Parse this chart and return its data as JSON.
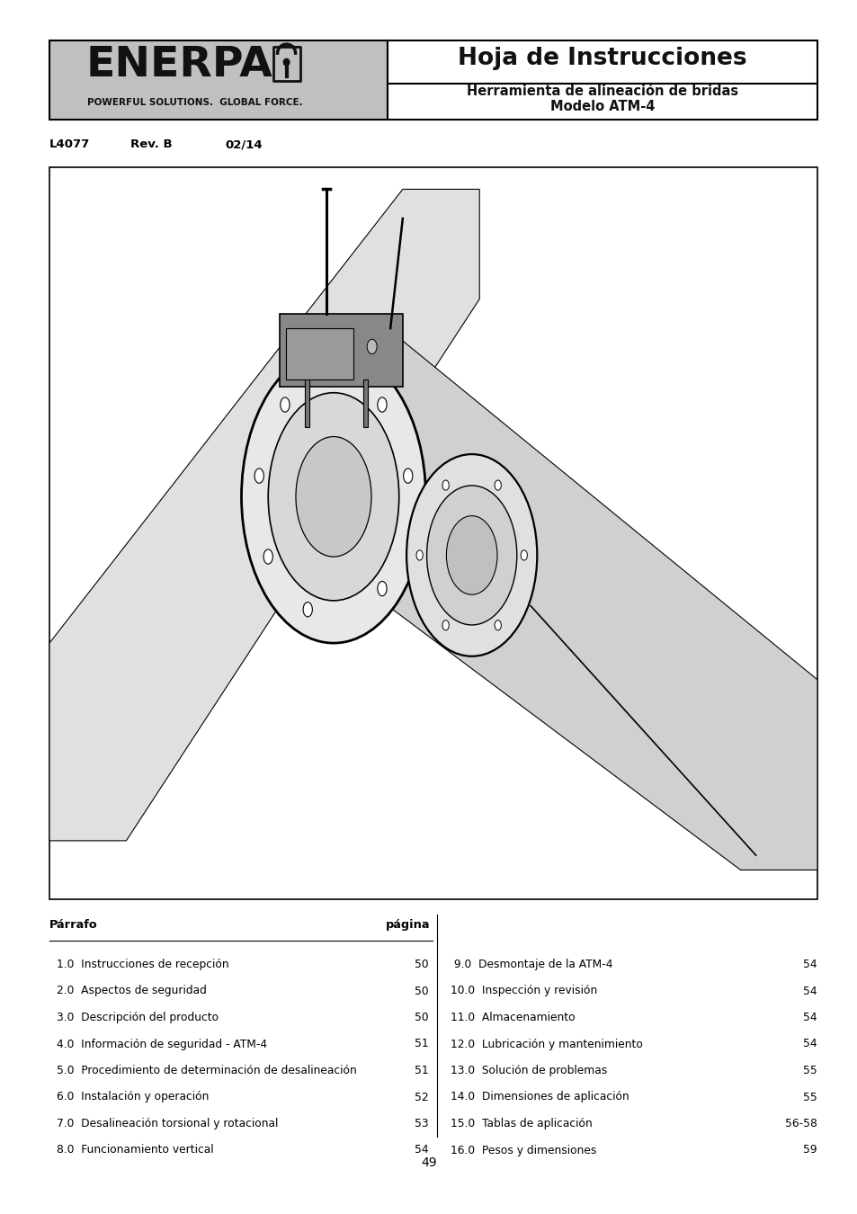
{
  "page_bg": "#ffffff",
  "header_left_bg": "#c0c0c0",
  "header_border": "#000000",
  "title_main": "Hoja de Instrucciones",
  "title_sub1": "Herramienta de alineación de bridas",
  "title_sub2": "Modelo ATM-4",
  "doc_ref": "L4077",
  "rev": "Rev. B",
  "date": "02/14",
  "enerpac_text": "ENERPAC",
  "tagline": "POWERFUL SOLUTIONS.  GLOBAL FORCE.",
  "toc_header_left": "Párrafo",
  "toc_header_right": "página",
  "toc_left": [
    [
      "1.0  Instrucciones de recepción",
      "50"
    ],
    [
      "2.0  Aspectos de seguridad",
      "50"
    ],
    [
      "3.0  Descripción del producto",
      "50"
    ],
    [
      "4.0  Información de seguridad - ATM-4",
      "51"
    ],
    [
      "5.0  Procedimiento de determinación de desalineación",
      "51"
    ],
    [
      "6.0  Instalación y operación",
      "52"
    ],
    [
      "7.0  Desalineación torsional y rotacional",
      "53"
    ],
    [
      "8.0  Funcionamiento vertical",
      "54"
    ]
  ],
  "toc_right": [
    [
      " 9.0  Desmontaje de la ATM-4",
      "54"
    ],
    [
      "10.0  Inspección y revisión",
      "54"
    ],
    [
      "11.0  Almacenamiento",
      "54"
    ],
    [
      "12.0  Lubricación y mantenimiento",
      "54"
    ],
    [
      "13.0  Solución de problemas",
      "55"
    ],
    [
      "14.0  Dimensiones de aplicación",
      "55"
    ],
    [
      "15.0  Tablas de aplicación",
      "56-58"
    ],
    [
      "16.0  Pesos y dimensiones",
      "59"
    ]
  ],
  "page_number": "49",
  "fig_w": 9.54,
  "fig_h": 13.5,
  "dpi": 100
}
